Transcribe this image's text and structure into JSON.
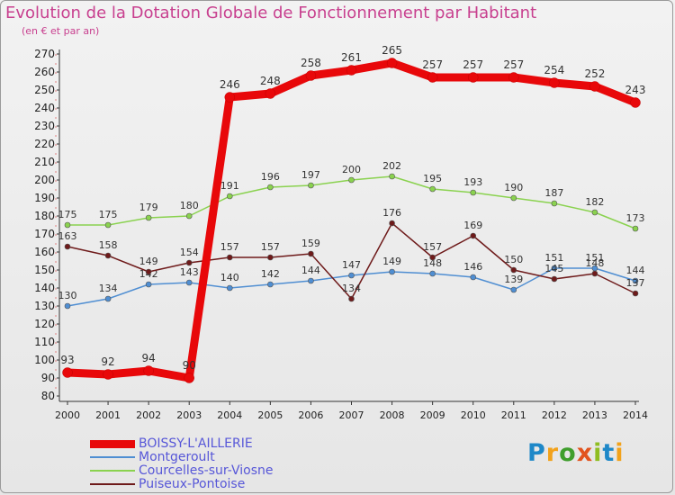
{
  "header": {
    "title": "Evolution de la Dotation Globale de Fonctionnement par Habitant",
    "subtitle": "(en € et par an)"
  },
  "logo": {
    "letters": [
      "P",
      "r",
      "o",
      "x",
      "i",
      "t",
      "i"
    ],
    "colors": [
      "#1e88c8",
      "#f2a21b",
      "#3f9e2d",
      "#e2541f",
      "#8fbd21",
      "#1e88c8",
      "#f2a21b"
    ]
  },
  "chart_data": {
    "type": "line",
    "title": "Evolution de la Dotation Globale de Fonctionnement par Habitant",
    "ylabel": "(en € et par an)",
    "xlabel": "",
    "x": [
      "2000",
      "2001",
      "2002",
      "2003",
      "2004",
      "2005",
      "2006",
      "2007",
      "2008",
      "2009",
      "2010",
      "2011",
      "2012",
      "2013",
      "2014"
    ],
    "ylim": [
      80,
      270
    ],
    "yticks": [
      80,
      90,
      100,
      110,
      120,
      130,
      140,
      150,
      160,
      170,
      180,
      190,
      200,
      210,
      220,
      230,
      240,
      250,
      260,
      270
    ],
    "grid": false,
    "legend_position": "bottom-left",
    "series": [
      {
        "name": "BOISSY-L'AILLERIE",
        "color": "#e8080a",
        "values": [
          93,
          92,
          94,
          90,
          246,
          248,
          258,
          261,
          265,
          257,
          257,
          257,
          254,
          252,
          243
        ]
      },
      {
        "name": "Montgeroult",
        "color": "#4f8ed2",
        "values": [
          130,
          134,
          142,
          143,
          140,
          142,
          144,
          147,
          149,
          148,
          146,
          139,
          151,
          151,
          144
        ]
      },
      {
        "name": "Courcelles-sur-Viosne",
        "color": "#8ad24f",
        "values": [
          175,
          175,
          179,
          180,
          191,
          196,
          197,
          200,
          202,
          195,
          193,
          190,
          187,
          182,
          173
        ]
      },
      {
        "name": "Puiseux-Pontoise",
        "color": "#6e1a1a",
        "values": [
          163,
          158,
          149,
          154,
          157,
          157,
          159,
          134,
          176,
          157,
          169,
          150,
          145,
          148,
          137
        ]
      }
    ]
  }
}
